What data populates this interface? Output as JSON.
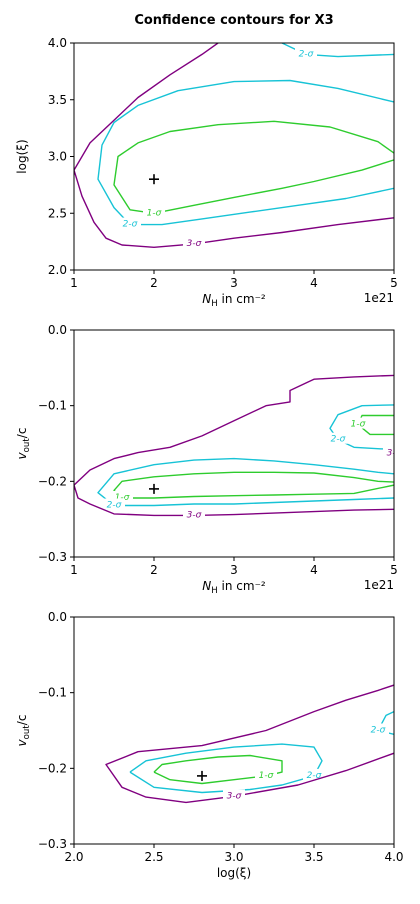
{
  "figure": {
    "title": "Confidence contours for X3"
  },
  "colors": {
    "one_sigma": "#2ecc2e",
    "two_sigma": "#17c3d6",
    "three_sigma": "#800080",
    "best_fit": "#000000"
  },
  "chart_data": [
    {
      "type": "contour",
      "xlabel": "N_H in cm⁻²",
      "ylabel": "log(ξ)",
      "x_offset_label": "1e21",
      "xlim": [
        1,
        5
      ],
      "ylim": [
        2.0,
        4.0
      ],
      "xticks": [
        "1",
        "2",
        "3",
        "4",
        "5"
      ],
      "yticks": [
        "2.0",
        "2.5",
        "3.0",
        "3.5",
        "4.0"
      ],
      "best_fit": {
        "x": 2,
        "y": 2.8
      },
      "series": [
        {
          "name": "1-σ",
          "label": "1-σ",
          "x": [
            5,
            4.6,
            4,
            3.6,
            3,
            2.5,
            2,
            1.7,
            1.5,
            1.55,
            1.8,
            2.2,
            2.8,
            3.5,
            4.2,
            4.8,
            5
          ],
          "y": [
            2.97,
            2.88,
            2.78,
            2.72,
            2.64,
            2.57,
            2.5,
            2.53,
            2.75,
            3.0,
            3.12,
            3.22,
            3.28,
            3.31,
            3.26,
            3.13,
            3.03
          ]
        },
        {
          "name": "2-σ",
          "label": "2-σ",
          "x": [
            5,
            4.4,
            3.8,
            3.2,
            2.6,
            2.1,
            1.7,
            1.5,
            1.3,
            1.35,
            1.5,
            1.8,
            2.3,
            3,
            3.7,
            4.3,
            5
          ],
          "y": [
            2.72,
            2.63,
            2.57,
            2.51,
            2.45,
            2.4,
            2.4,
            2.55,
            2.8,
            3.1,
            3.3,
            3.45,
            3.58,
            3.66,
            3.67,
            3.6,
            3.48
          ]
        },
        {
          "name": "2-σ",
          "label": "2-σ",
          "x": [
            3.6,
            3.9,
            4.3,
            5
          ],
          "y": [
            4.0,
            3.9,
            3.88,
            3.9
          ]
        },
        {
          "name": "3-σ",
          "label": "3-σ",
          "x": [
            5,
            4.3,
            3.6,
            3,
            2.5,
            2,
            1.6,
            1.4,
            1.25,
            1.1,
            1,
            1.2,
            1.5,
            1.8,
            2.2,
            2.6,
            2.8
          ],
          "y": [
            2.46,
            2.4,
            2.33,
            2.28,
            2.23,
            2.2,
            2.22,
            2.28,
            2.42,
            2.65,
            2.88,
            3.12,
            3.32,
            3.52,
            3.72,
            3.9,
            4.0
          ]
        }
      ]
    },
    {
      "type": "contour",
      "xlabel": "N_H in cm⁻²",
      "ylabel": "v_out/c",
      "x_offset_label": "1e21",
      "xlim": [
        1,
        5
      ],
      "ylim": [
        -0.3,
        0.0
      ],
      "xticks": [
        "1",
        "2",
        "3",
        "4",
        "5"
      ],
      "yticks": [
        "−0.3",
        "−0.2",
        "−0.1",
        "0.0"
      ],
      "best_fit": {
        "x": 2,
        "y": -0.21
      },
      "series": [
        {
          "name": "1-σ",
          "label": "1-σ",
          "x": [
            5,
            4.5,
            4,
            3.5,
            3,
            2.5,
            2,
            1.6,
            1.5,
            1.6,
            2,
            2.5,
            3,
            3.5,
            4,
            4.5,
            4.8,
            5
          ],
          "y": [
            -0.205,
            -0.216,
            -0.217,
            -0.218,
            -0.219,
            -0.22,
            -0.222,
            -0.222,
            -0.212,
            -0.2,
            -0.194,
            -0.19,
            -0.188,
            -0.188,
            -0.189,
            -0.195,
            -0.2,
            -0.201
          ]
        },
        {
          "name": "1-σ",
          "label": "1-σ",
          "x": [
            5,
            4.7,
            4.55,
            4.6,
            4.8,
            5
          ],
          "y": [
            -0.138,
            -0.138,
            -0.125,
            -0.113,
            -0.113,
            -0.113
          ]
        },
        {
          "name": "2-σ",
          "label": "2-σ",
          "x": [
            5,
            4.5,
            4,
            3.5,
            3,
            2.5,
            2,
            1.5,
            1.3,
            1.5,
            2,
            2.5,
            3,
            3.5,
            4,
            4.5,
            4.8,
            5
          ],
          "y": [
            -0.222,
            -0.224,
            -0.226,
            -0.228,
            -0.23,
            -0.23,
            -0.232,
            -0.232,
            -0.215,
            -0.19,
            -0.178,
            -0.172,
            -0.17,
            -0.173,
            -0.178,
            -0.184,
            -0.188,
            -0.19
          ]
        },
        {
          "name": "2-σ",
          "label": "2-σ",
          "x": [
            5,
            4.5,
            4.3,
            4.2,
            4.3,
            4.6,
            5
          ],
          "y": [
            -0.158,
            -0.155,
            -0.145,
            -0.13,
            -0.112,
            -0.1,
            -0.099
          ]
        },
        {
          "name": "3-σ",
          "label": "3-σ",
          "x": [
            5,
            4.5,
            4,
            3.5,
            3,
            2.5,
            2,
            1.5,
            1.2,
            1.05,
            1,
            1.2,
            1.5,
            1.8,
            2.2,
            2.6,
            3,
            3.4,
            3.7,
            3.7,
            4,
            4.5,
            5
          ],
          "y": [
            -0.237,
            -0.238,
            -0.24,
            -0.242,
            -0.244,
            -0.245,
            -0.245,
            -0.243,
            -0.23,
            -0.222,
            -0.205,
            -0.185,
            -0.17,
            -0.162,
            -0.155,
            -0.14,
            -0.12,
            -0.1,
            -0.095,
            -0.08,
            -0.065,
            -0.062,
            -0.06
          ]
        },
        {
          "name": "3-σ",
          "label": "3-σ",
          "x": [
            5,
            4.9,
            5
          ],
          "y": [
            -0.163,
            -0.163,
            -0.163
          ]
        }
      ]
    },
    {
      "type": "contour",
      "xlabel": "log(ξ)",
      "ylabel": "v_out/c",
      "xlim": [
        2.0,
        4.0
      ],
      "ylim": [
        -0.3,
        0.0
      ],
      "xticks": [
        "2.0",
        "2.5",
        "3.0",
        "3.5",
        "4.0"
      ],
      "yticks": [
        "−0.3",
        "−0.2",
        "−0.1",
        "0.0"
      ],
      "best_fit": {
        "x": 2.8,
        "y": -0.21
      },
      "series": [
        {
          "name": "1-σ",
          "label": "1-σ",
          "x": [
            2.5,
            2.6,
            2.8,
            3.0,
            3.2,
            3.3,
            3.3,
            3.1,
            2.9,
            2.7,
            2.55,
            2.5
          ],
          "y": [
            -0.205,
            -0.215,
            -0.22,
            -0.215,
            -0.21,
            -0.205,
            -0.19,
            -0.183,
            -0.185,
            -0.19,
            -0.195,
            -0.205
          ]
        },
        {
          "name": "2-σ",
          "label": "2-σ",
          "x": [
            2.35,
            2.5,
            2.8,
            3.1,
            3.3,
            3.5,
            3.55,
            3.5,
            3.3,
            3.0,
            2.7,
            2.45,
            2.35
          ],
          "y": [
            -0.205,
            -0.225,
            -0.232,
            -0.228,
            -0.222,
            -0.21,
            -0.19,
            -0.172,
            -0.168,
            -0.172,
            -0.18,
            -0.19,
            -0.205
          ]
        },
        {
          "name": "2-σ",
          "label": "2-σ",
          "x": [
            4.0,
            3.9,
            3.95,
            4.0
          ],
          "y": [
            -0.155,
            -0.15,
            -0.13,
            -0.125
          ]
        },
        {
          "name": "3-σ",
          "label": "3-σ",
          "x": [
            4.0,
            3.7,
            3.4,
            3.0,
            2.7,
            2.45,
            2.3,
            2.2,
            2.4,
            2.8,
            3.2,
            3.5,
            3.7,
            3.9,
            4.0
          ],
          "y": [
            -0.18,
            -0.203,
            -0.222,
            -0.237,
            -0.245,
            -0.238,
            -0.225,
            -0.195,
            -0.178,
            -0.17,
            -0.15,
            -0.125,
            -0.11,
            -0.097,
            -0.09
          ]
        }
      ]
    }
  ]
}
